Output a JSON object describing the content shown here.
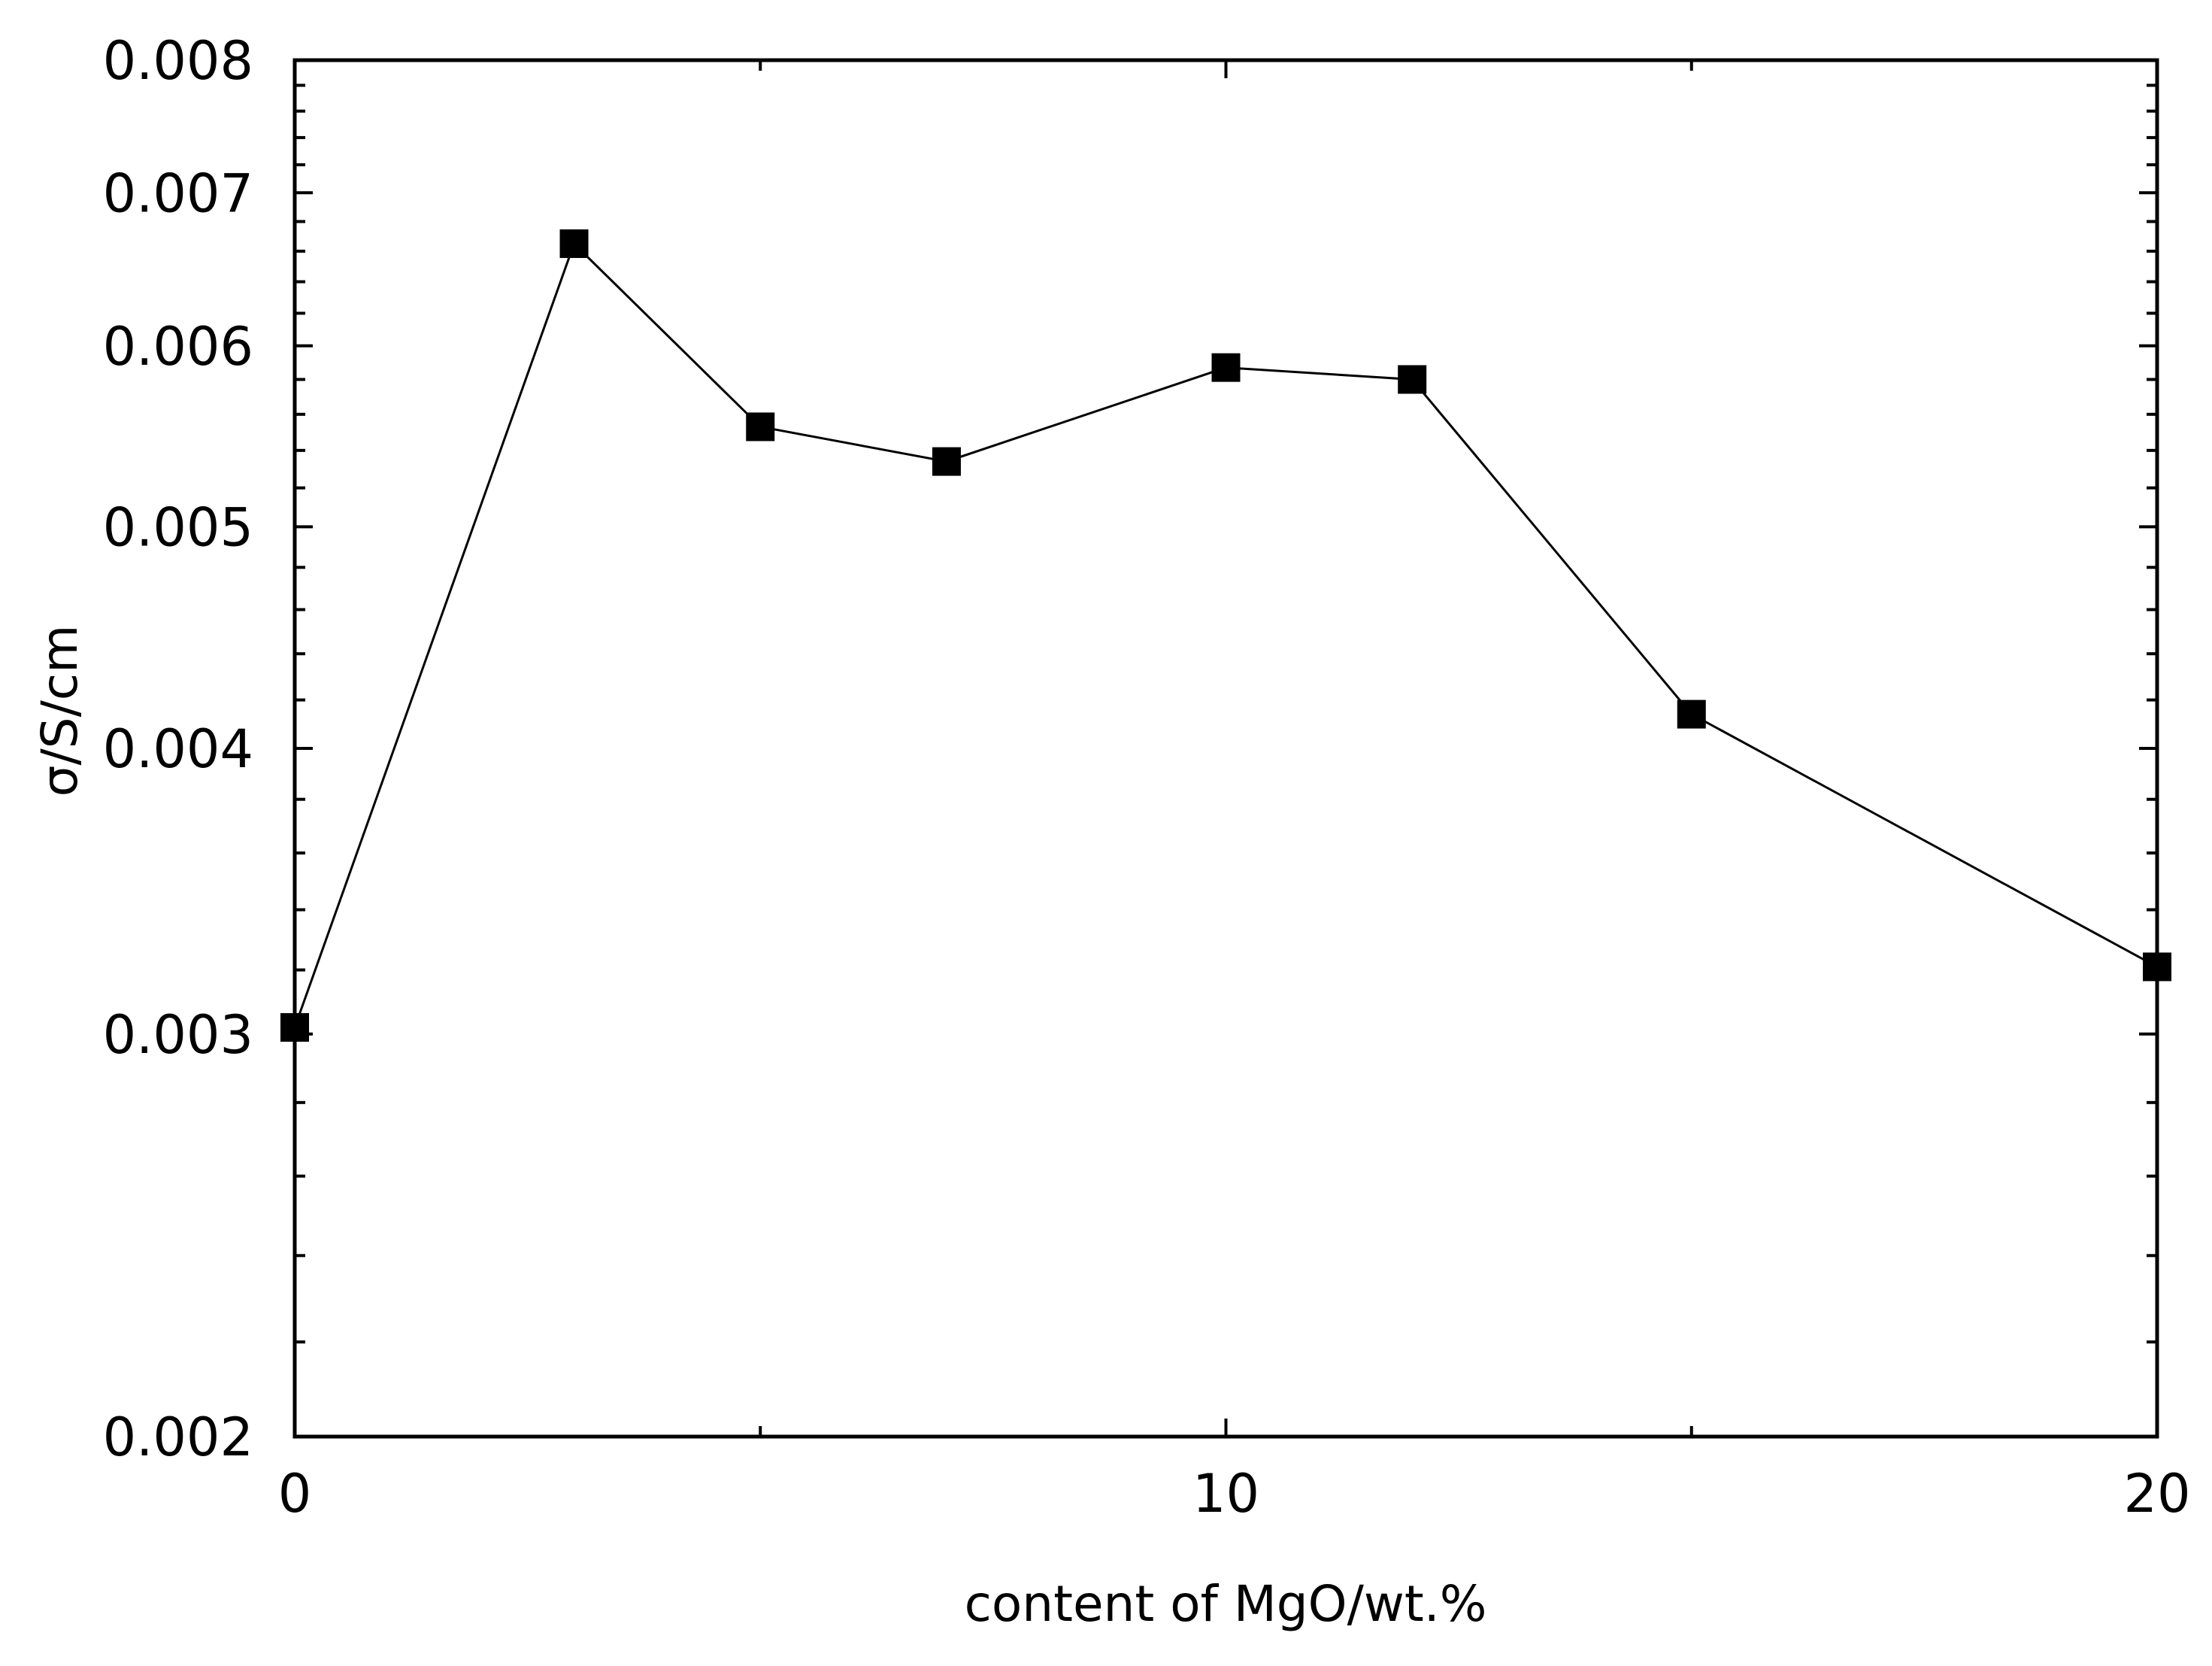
{
  "chart_data": {
    "type": "line",
    "title": "",
    "xlabel": "content of MgO/wt.%",
    "ylabel": "σ/S/cm",
    "xlim": [
      0,
      20
    ],
    "ylim": [
      0.002,
      0.008
    ],
    "yscale": "log",
    "grid": false,
    "x_ticks": [
      0,
      10,
      20
    ],
    "x_tick_labels": [
      "0",
      "10",
      "20"
    ],
    "y_ticks": [
      0.002,
      0.003,
      0.004,
      0.005,
      0.006,
      0.007,
      0.008
    ],
    "y_tick_labels": [
      "0.002",
      "0.003",
      "0.004",
      "0.005",
      "0.006",
      "0.007",
      "0.008"
    ],
    "series": [
      {
        "x": [
          0,
          3,
          5,
          7,
          10,
          12,
          15,
          20
        ],
        "y": [
          0.00302,
          0.00665,
          0.00553,
          0.00534,
          0.00587,
          0.0058,
          0.00414,
          0.00321
        ],
        "marker": "square",
        "color": "#000000"
      }
    ]
  }
}
